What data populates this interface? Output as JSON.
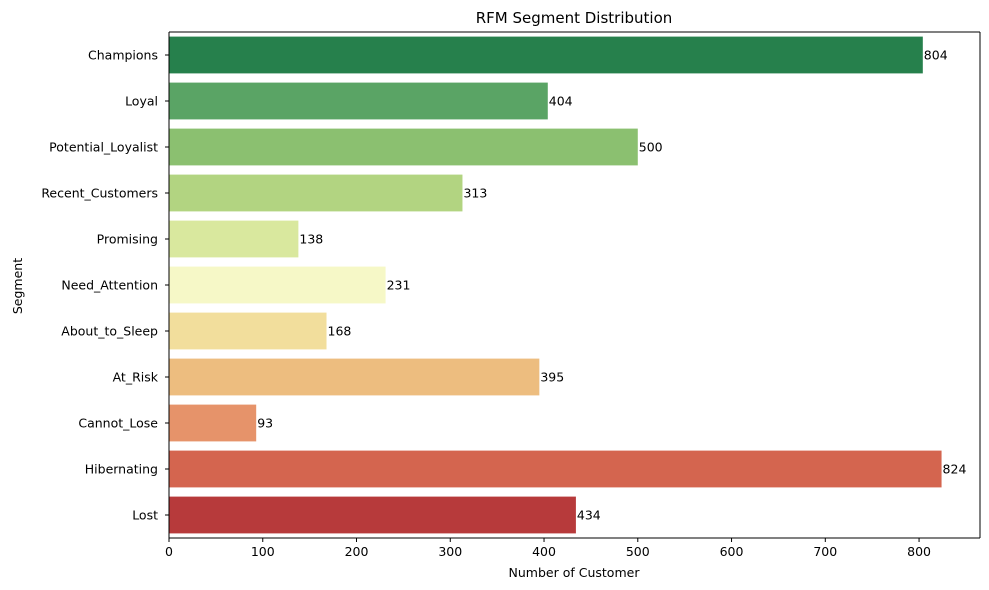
{
  "chart_data": {
    "type": "bar",
    "orientation": "horizontal",
    "title": "RFM Segment Distribution",
    "xlabel": "Number of Customer",
    "ylabel": "Segment",
    "xlim": [
      0,
      865
    ],
    "xticks": [
      0,
      100,
      200,
      300,
      400,
      500,
      600,
      700,
      800
    ],
    "grid": false,
    "categories": [
      "Champions",
      "Loyal",
      "Potential_Loyalist",
      "Recent_Customers",
      "Promising",
      "Need_Attention",
      "About_to_Sleep",
      "At_Risk",
      "Cannot_Lose",
      "Hibernating",
      "Lost"
    ],
    "values": [
      804,
      404,
      500,
      313,
      138,
      231,
      168,
      395,
      93,
      824,
      434
    ],
    "colors": [
      "#26804c",
      "#5aa465",
      "#8bc070",
      "#b2d481",
      "#d9e89e",
      "#f6f8c7",
      "#f2de9c",
      "#edbd7f",
      "#e6936a",
      "#d4654f",
      "#b73a3b"
    ]
  }
}
